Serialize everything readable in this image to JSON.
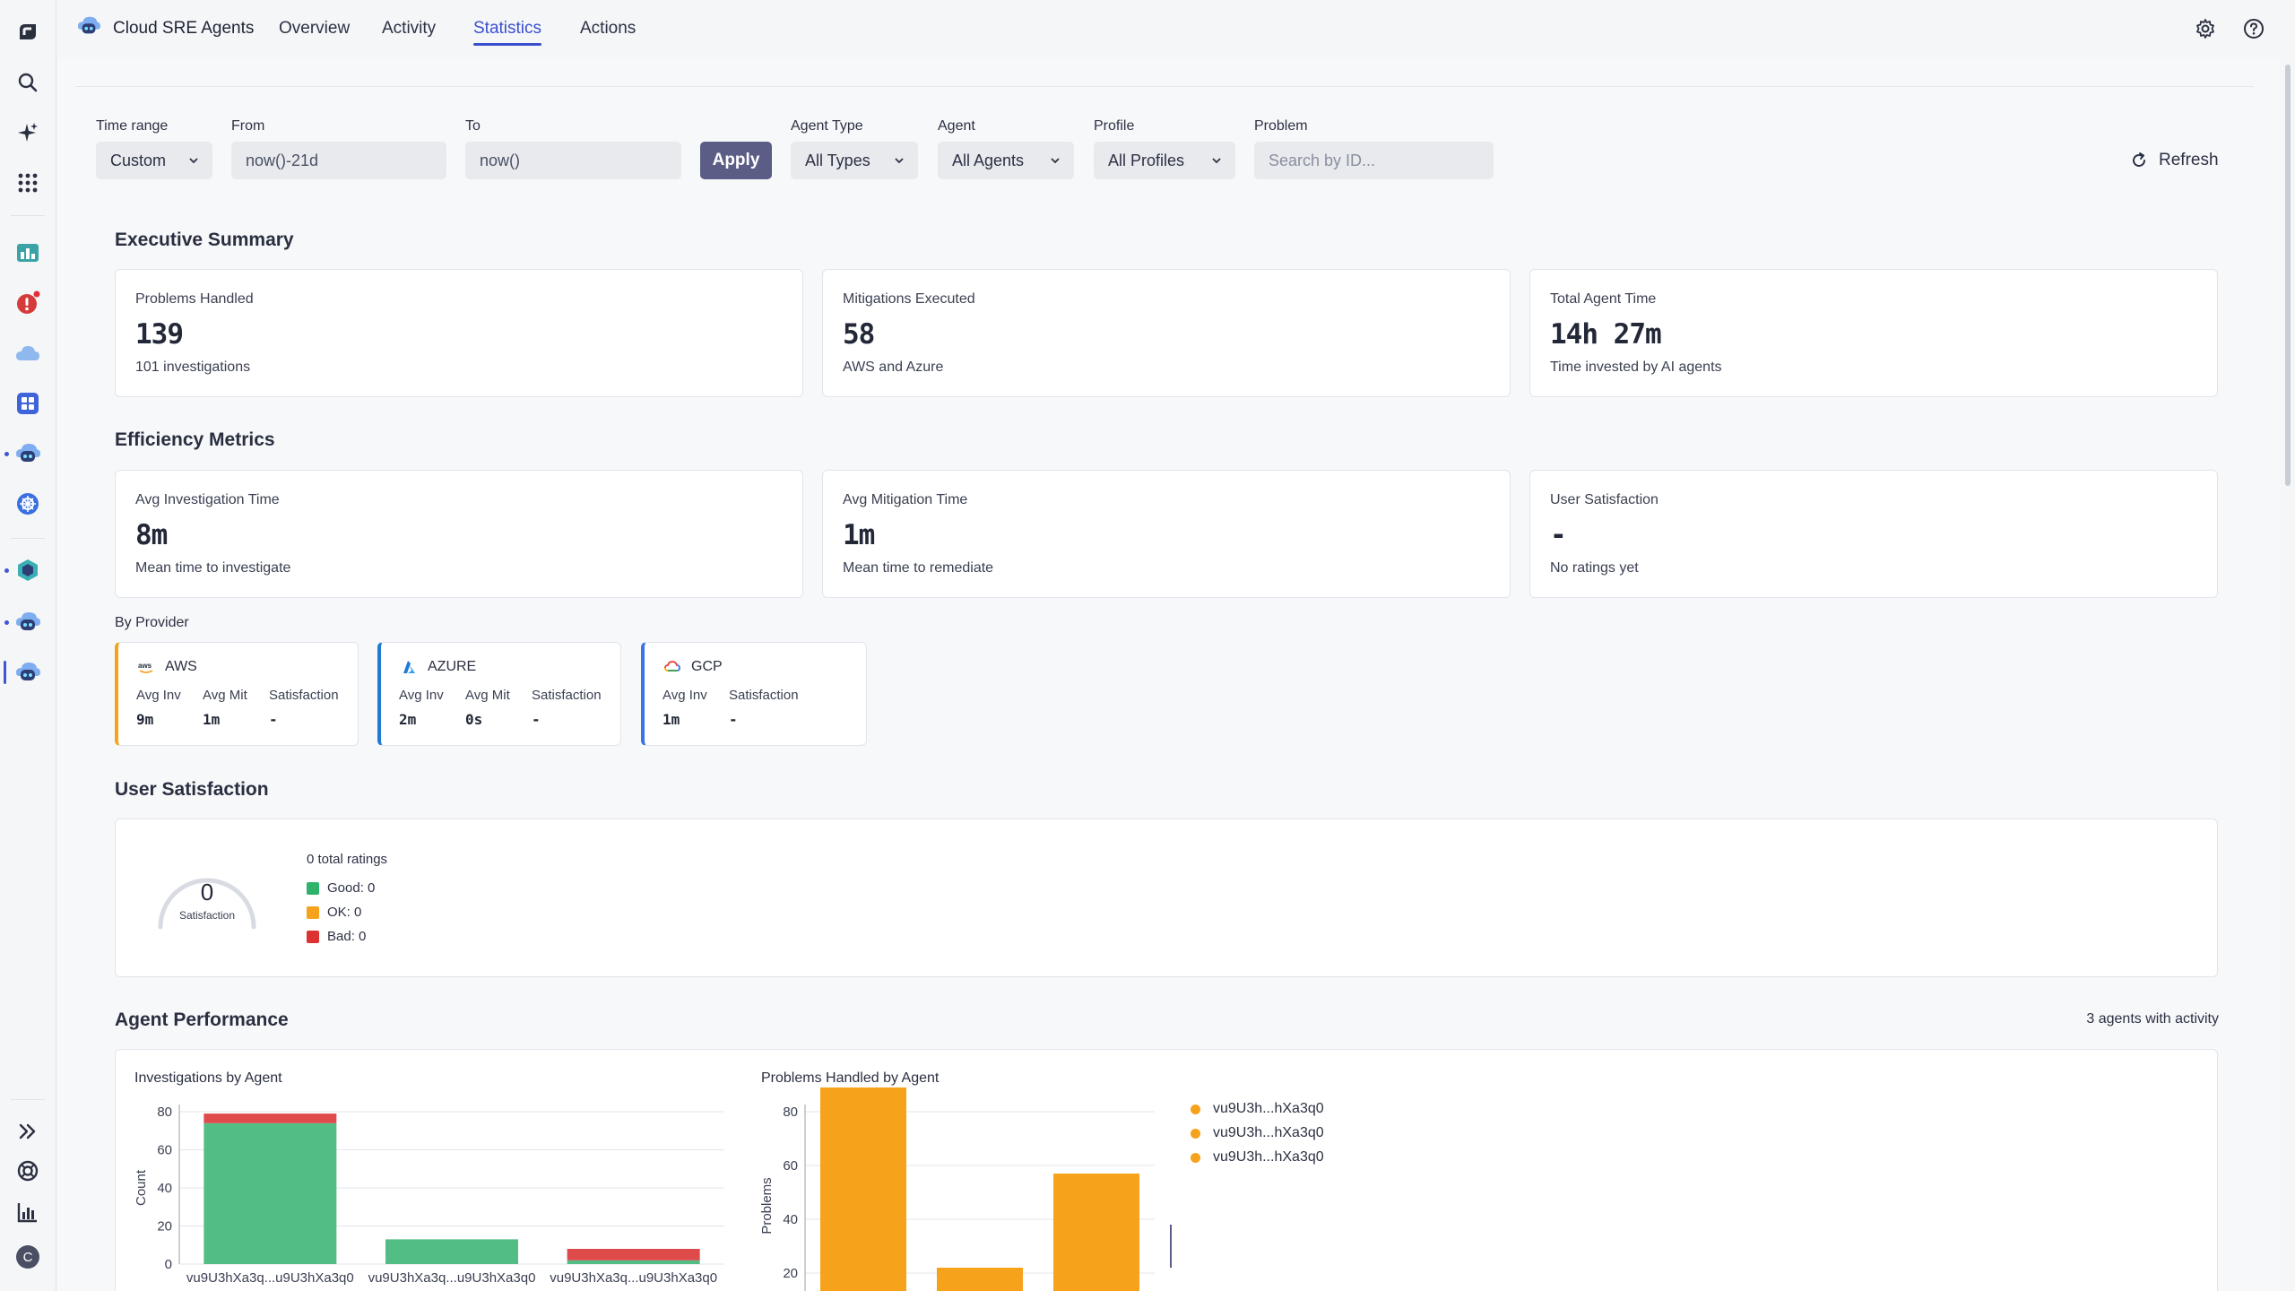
{
  "app": {
    "title": "Cloud SRE Agents"
  },
  "nav": {
    "tabs": [
      {
        "label": "Overview"
      },
      {
        "label": "Activity"
      },
      {
        "label": "Statistics"
      },
      {
        "label": "Actions"
      }
    ],
    "active_tab": "Statistics"
  },
  "sidebar": {
    "user_initial": "C",
    "icons": [
      "app-logo-icon",
      "search-icon",
      "sparkle-icon",
      "apps-grid-icon",
      "dashboard-icon",
      "problems-icon",
      "cloud-icon",
      "grid-app-icon",
      "agent-icon",
      "kubernetes-icon",
      "hex-app-icon",
      "agent-icon",
      "agent-icon",
      "expand-icon",
      "help-ring-icon",
      "chart-icon",
      "user-avatar"
    ]
  },
  "filters": {
    "time_range": {
      "label": "Time range",
      "value": "Custom"
    },
    "from": {
      "label": "From",
      "value": "now()-21d"
    },
    "to": {
      "label": "To",
      "value": "now()"
    },
    "apply_label": "Apply",
    "agent_type": {
      "label": "Agent Type",
      "value": "All Types"
    },
    "agent": {
      "label": "Agent",
      "value": "All Agents"
    },
    "profile": {
      "label": "Profile",
      "value": "All Profiles"
    },
    "problem": {
      "label": "Problem",
      "placeholder": "Search by ID..."
    },
    "refresh_label": "Refresh"
  },
  "executive_summary": {
    "title": "Executive Summary",
    "cards": [
      {
        "label": "Problems Handled",
        "value": "139",
        "sub": "101 investigations"
      },
      {
        "label": "Mitigations Executed",
        "value": "58",
        "sub": "AWS and Azure"
      },
      {
        "label": "Total Agent Time",
        "value": "14h 27m",
        "sub": "Time invested by AI agents"
      }
    ]
  },
  "efficiency": {
    "title": "Efficiency Metrics",
    "cards": [
      {
        "label": "Avg Investigation Time",
        "value": "8m",
        "sub": "Mean time to investigate"
      },
      {
        "label": "Avg Mitigation Time",
        "value": "1m",
        "sub": "Mean time to remediate"
      },
      {
        "label": "User Satisfaction",
        "value": "-",
        "sub": "No ratings yet"
      }
    ],
    "by_provider_label": "By Provider",
    "providers": [
      {
        "name": "AWS",
        "color": "#f7a21b",
        "cols": [
          "Avg Inv",
          "Avg Mit",
          "Satisfaction"
        ],
        "vals": [
          "9m",
          "1m",
          "-"
        ]
      },
      {
        "name": "AZURE",
        "color": "#1f7ad6",
        "cols": [
          "Avg Inv",
          "Avg Mit",
          "Satisfaction"
        ],
        "vals": [
          "2m",
          "0s",
          "-"
        ]
      },
      {
        "name": "GCP",
        "color": "#3a74e6",
        "cols": [
          "Avg Inv",
          "Satisfaction"
        ],
        "vals": [
          "1m",
          "-"
        ]
      }
    ]
  },
  "user_satisfaction": {
    "title": "User Satisfaction",
    "gauge_value": "0",
    "gauge_label": "Satisfaction",
    "total_ratings": "0 total ratings",
    "legend": [
      {
        "label": "Good: 0",
        "color": "#2fb36b"
      },
      {
        "label": "OK: 0",
        "color": "#f7a21b"
      },
      {
        "label": "Bad: 0",
        "color": "#dc3232"
      }
    ]
  },
  "agent_performance": {
    "title": "Agent Performance",
    "summary": "3 agents with activity",
    "legend": [
      "vu9U3h...hXa3q0",
      "vu9U3h...hXa3q0",
      "vu9U3h...hXa3q0"
    ]
  },
  "chart_data": [
    {
      "type": "bar",
      "title": "Investigations by Agent",
      "xlabel": "",
      "ylabel": "Count",
      "ylim": [
        0,
        80
      ],
      "yticks": [
        0,
        20,
        40,
        60,
        80
      ],
      "categories": [
        "vu9U3hXa3q...u9U3hXa3q0",
        "vu9U3hXa3q...u9U3hXa3q0",
        "vu9U3hXa3q...u9U3hXa3q0"
      ],
      "stacked": true,
      "series": [
        {
          "values": [
            74,
            13,
            2
          ],
          "color": "#52be85"
        },
        {
          "values": [
            5,
            0,
            6
          ],
          "color": "#df4a4a"
        }
      ]
    },
    {
      "type": "bar",
      "title": "Problems Handled by Agent",
      "xlabel": "",
      "ylabel": "Problems",
      "ylim": [
        10,
        80
      ],
      "yticks": [
        20,
        40,
        60,
        80
      ],
      "categories": [
        "vu9U3h...hXa3q0",
        "vu9U3h...hXa3q0",
        "vu9U3h...hXa3q0"
      ],
      "series": [
        {
          "values": [
            79,
            12,
            47
          ],
          "color": "#f7a21b"
        }
      ]
    }
  ]
}
